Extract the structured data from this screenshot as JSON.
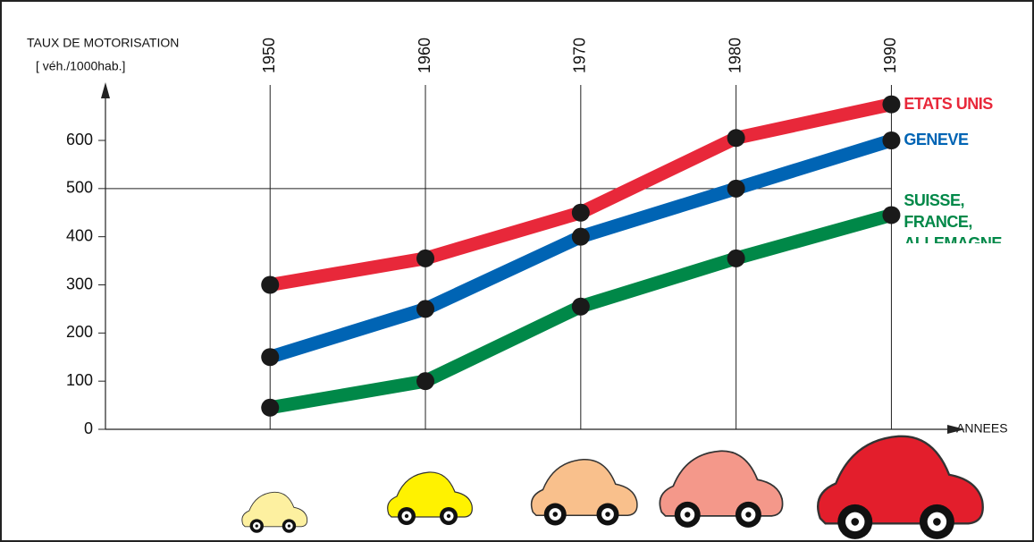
{
  "chart_data": {
    "type": "line",
    "y_label_line1": "TAUX DE MOTORISATION",
    "y_label_line2": "[ véh./1000hab.]",
    "x_label": "ANNEES",
    "x": [
      1950,
      1960,
      1970,
      1980,
      1990
    ],
    "series": [
      {
        "name": "ETATS UNIS",
        "color": "#e8283a",
        "values": [
          300,
          355,
          450,
          605,
          675
        ]
      },
      {
        "name": "GENEVE",
        "color": "#0064b4",
        "values": [
          150,
          250,
          400,
          500,
          600
        ]
      },
      {
        "name": "SUISSE, FRANCE, ALLEMAGNE",
        "color": "#008848",
        "values": [
          45,
          100,
          255,
          355,
          445
        ]
      }
    ],
    "xlim": [
      1939.4,
      1993.6
    ],
    "xticks": [
      1950,
      1960,
      1970,
      1980,
      1990
    ],
    "ylim": [
      0,
      600
    ],
    "yticks": [
      0,
      100,
      200,
      300,
      400,
      500,
      600
    ],
    "reference_line": 500,
    "grid": "x"
  }
}
